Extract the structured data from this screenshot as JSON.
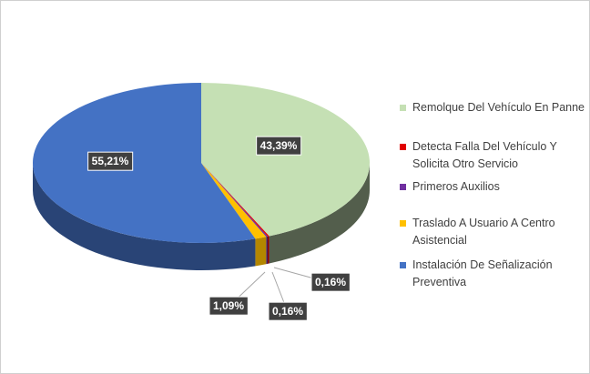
{
  "chart_data": {
    "type": "pie3d",
    "categories": [
      "Remolque Del Vehículo En Panne",
      "Detecta Falla Del Vehículo Y Solicita Otro Servicio",
      "Primeros Auxilios",
      "Traslado A Usuario A Centro Asistencial",
      "Instalación De Señalización Preventiva"
    ],
    "values": [
      43.39,
      0.16,
      0.16,
      1.09,
      55.21
    ],
    "value_labels": [
      "43,39%",
      "0,16%",
      "0,16%",
      "1,09%",
      "55,21%"
    ],
    "colors": [
      "#c5e0b4",
      "#e00000",
      "#7030a0",
      "#ffc000",
      "#4472c4"
    ],
    "legend": "right"
  }
}
